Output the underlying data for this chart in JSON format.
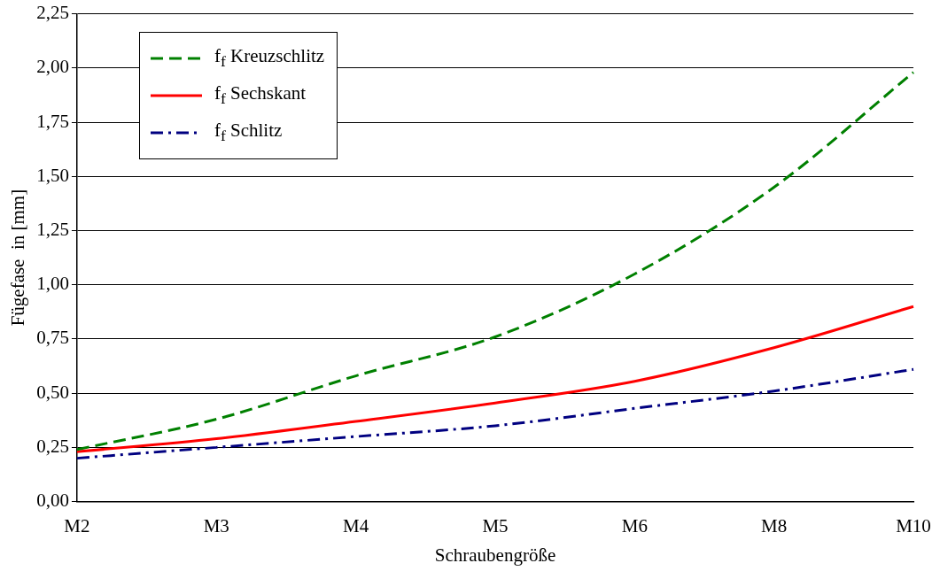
{
  "chart_data": {
    "type": "line",
    "xlabel": "Schraubengröße",
    "ylabel": "Fügefase  in [mm]",
    "categories": [
      "M2",
      "M3",
      "M4",
      "M5",
      "M6",
      "M8",
      "M10"
    ],
    "series": [
      {
        "name": "f$_{f}$ Kreuzschlitz",
        "color": "#008000",
        "line_style": "dashed",
        "values": [
          0.24,
          0.38,
          0.58,
          0.76,
          1.05,
          1.45,
          1.98
        ]
      },
      {
        "name": "f$_{f}$ Sechskant",
        "color": "#ff0000",
        "line_style": "solid",
        "values": [
          0.23,
          0.29,
          0.37,
          0.455,
          0.555,
          0.71,
          0.9
        ]
      },
      {
        "name": "f$_{f}$ Schlitz",
        "color": "#000080",
        "line_style": "dashdot",
        "values": [
          0.2,
          0.25,
          0.3,
          0.35,
          0.43,
          0.51,
          0.61
        ]
      }
    ],
    "ylim": [
      0,
      2.25
    ],
    "yticks": [
      {
        "value": 0,
        "label": "0,00"
      },
      {
        "value": 0.25,
        "label": "0,25"
      },
      {
        "value": 0.5,
        "label": "0,50"
      },
      {
        "value": 0.75,
        "label": "0,75"
      },
      {
        "value": 1,
        "label": "1,00"
      },
      {
        "value": 1.25,
        "label": "1,25"
      },
      {
        "value": 1.5,
        "label": "1,50"
      },
      {
        "value": 1.75,
        "label": "1,75"
      },
      {
        "value": 2,
        "label": "2,00"
      },
      {
        "value": 2.25,
        "label": "2,25"
      }
    ],
    "grid": "y",
    "legend": "top left",
    "marker": "none"
  }
}
